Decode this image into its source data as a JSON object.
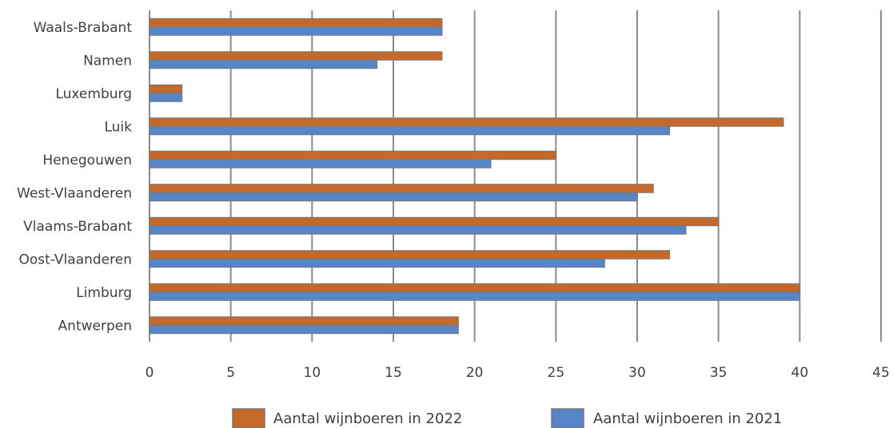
{
  "chart_data": {
    "type": "bar",
    "orientation": "horizontal",
    "categories": [
      "Waals-Brabant",
      "Namen",
      "Luxemburg",
      "Luik",
      "Henegouwen",
      "West-Vlaanderen",
      "Vlaams-Brabant",
      "Oost-Vlaanderen",
      "Limburg",
      "Antwerpen"
    ],
    "series": [
      {
        "name": "Aantal wijnboeren in 2022",
        "color": "#C5692A",
        "values": [
          18,
          18,
          2,
          39,
          25,
          31,
          35,
          32,
          40,
          19
        ]
      },
      {
        "name": "Aantal wijnboeren in 2021",
        "color": "#5786C8",
        "values": [
          18,
          14,
          2,
          32,
          21,
          30,
          33,
          28,
          40,
          19
        ]
      }
    ],
    "xlim": [
      0,
      45
    ],
    "xticks": [
      "0",
      "5",
      "10",
      "15",
      "20",
      "25",
      "30",
      "35",
      "40",
      "45"
    ],
    "grid": "vertical",
    "legend_position": "bottom"
  }
}
